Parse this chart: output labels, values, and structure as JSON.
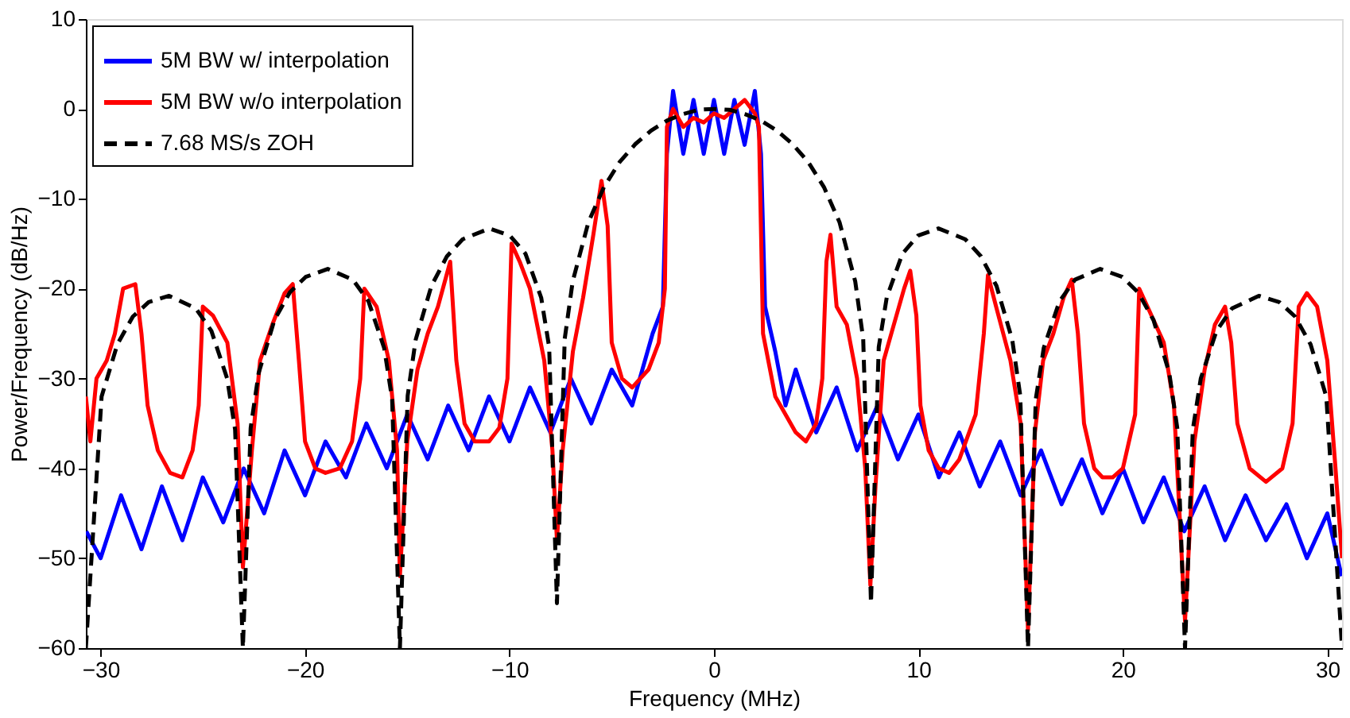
{
  "chart_data": {
    "type": "line",
    "xlabel": "Frequency (MHz)",
    "ylabel": "Power/Frequency (dB/Hz)",
    "xlim": [
      -30.72,
      30.72
    ],
    "ylim": [
      -60,
      10
    ],
    "xticks": [
      -30,
      -20,
      -10,
      0,
      10,
      20,
      30
    ],
    "yticks": [
      -60,
      -50,
      -40,
      -30,
      -20,
      -10,
      0,
      10
    ],
    "grid": false,
    "legend": "top left",
    "marker": "none",
    "series": [
      {
        "name": "5M BW w/ interpolation",
        "color": "#0000ff",
        "line_style": "solid",
        "x": [
          -30.7,
          -30,
          -29,
          -28,
          -27,
          -26,
          -25,
          -24,
          -23,
          -22,
          -21,
          -20,
          -19,
          -18,
          -17,
          -16,
          -15,
          -14,
          -13,
          -12,
          -11,
          -10,
          -9,
          -8,
          -7,
          -6,
          -5,
          -4,
          -3,
          -2.5,
          -2.3,
          -2,
          -1.5,
          -1,
          -0.5,
          0,
          0.5,
          1,
          1.5,
          2,
          2.3,
          2.5,
          3,
          3.5,
          4,
          5,
          6,
          7,
          8,
          9,
          10,
          11,
          12,
          13,
          14,
          15,
          16,
          17,
          18,
          19,
          20,
          21,
          22,
          23,
          24,
          25,
          26,
          27,
          28,
          29,
          30,
          30.7
        ],
        "values": [
          -47,
          -50,
          -43,
          -49,
          -42,
          -48,
          -41,
          -46,
          -40,
          -45,
          -38,
          -43,
          -37,
          -41,
          -35,
          -40,
          -34,
          -39,
          -33,
          -38,
          -32,
          -37,
          -31,
          -36,
          -30,
          -35,
          -29,
          -33,
          -25,
          -22,
          -5,
          2,
          -5,
          1,
          -5,
          1,
          -5,
          1,
          -4,
          2,
          -5,
          -22,
          -27,
          -33,
          -29,
          -36,
          -31,
          -38,
          -33,
          -39,
          -34,
          -41,
          -36,
          -42,
          -37,
          -43,
          -38,
          -44,
          -39,
          -45,
          -40,
          -46,
          -41,
          -47,
          -42,
          -48,
          -43,
          -48,
          -44,
          -50,
          -45,
          -52
        ]
      },
      {
        "name": "5M BW w/o interpolation",
        "color": "#ff0000",
        "line_style": "solid",
        "x": [
          -30.72,
          -30.5,
          -30.2,
          -29.7,
          -29.3,
          -28.9,
          -28.3,
          -28.0,
          -27.7,
          -27.2,
          -26.6,
          -26,
          -25.5,
          -25.2,
          -25.0,
          -24.5,
          -23.8,
          -23.3,
          -23.04,
          -22.6,
          -22.2,
          -21.6,
          -21,
          -20.6,
          -20.3,
          -20.0,
          -19.5,
          -19,
          -18.3,
          -17.7,
          -17.3,
          -17.1,
          -16.5,
          -15.9,
          -15.5,
          -15.36,
          -15.0,
          -14.5,
          -14,
          -13.5,
          -12.9,
          -12.6,
          -12.2,
          -11.7,
          -11,
          -10.5,
          -10.1,
          -9.9,
          -9.5,
          -9.0,
          -8.3,
          -7.9,
          -7.68,
          -7.4,
          -6.9,
          -6.4,
          -5.9,
          -5.5,
          -5.2,
          -5.0,
          -4.5,
          -4,
          -3.2,
          -2.7,
          -2.4,
          -2.3,
          -2,
          -1.5,
          -1,
          -0.5,
          0,
          0.5,
          1,
          1.5,
          2,
          2.2,
          2.4,
          3,
          4,
          4.5,
          5,
          5.3,
          5.5,
          5.7,
          6.0,
          6.5,
          7.0,
          7.4,
          7.65,
          7.9,
          8.3,
          8.8,
          9.3,
          9.6,
          9.9,
          10.1,
          10.5,
          11,
          11.5,
          12,
          12.8,
          13.2,
          13.4,
          13.8,
          14.5,
          15.0,
          15.36,
          15.7,
          16.1,
          16.6,
          17.1,
          17.5,
          17.8,
          18.1,
          18.6,
          19,
          19.5,
          20,
          20.6,
          20.8,
          21.2,
          22,
          22.5,
          23.04,
          23.5,
          24,
          24.5,
          25,
          25.3,
          25.6,
          26.2,
          27,
          27.8,
          28.3,
          28.6,
          29,
          29.5,
          30,
          30.4,
          30.72
        ],
        "values": [
          -32,
          -37,
          -30,
          -28,
          -25,
          -20,
          -19.5,
          -25,
          -33,
          -38,
          -40.5,
          -41,
          -38,
          -33,
          -22,
          -23,
          -26,
          -35,
          -51,
          -38,
          -28,
          -24,
          -20.5,
          -19.5,
          -28,
          -37,
          -40,
          -40.5,
          -40,
          -37,
          -30,
          -20,
          -22,
          -28,
          -38,
          -52,
          -37,
          -29,
          -25,
          -22,
          -17,
          -28,
          -35,
          -37,
          -37,
          -35.5,
          -30,
          -15,
          -17,
          -20,
          -28,
          -38,
          -48,
          -38,
          -27,
          -21,
          -14,
          -8,
          -13,
          -26,
          -30,
          -31,
          -29,
          -26,
          -20,
          -2,
          0,
          -2,
          -1,
          -1.5,
          -0.5,
          -1,
          0,
          1,
          -0.5,
          -2,
          -25,
          -32,
          -36,
          -37,
          -35,
          -30,
          -17,
          -14,
          -22,
          -24,
          -30,
          -40,
          -53,
          -42,
          -28,
          -24,
          -20,
          -18,
          -23,
          -33,
          -38,
          -40,
          -40.5,
          -39,
          -34,
          -25,
          -18.5,
          -22,
          -28,
          -35,
          -58,
          -36,
          -28,
          -25,
          -21,
          -19,
          -25,
          -35,
          -40,
          -41,
          -41,
          -40,
          -34,
          -20,
          -22,
          -26,
          -33,
          -57,
          -37,
          -29,
          -24,
          -22,
          -26,
          -35,
          -40,
          -41.5,
          -40,
          -35,
          -22,
          -20.5,
          -22,
          -28,
          -40,
          -50
        ]
      },
      {
        "name": "7.68 MS/s ZOH",
        "color": "#000000",
        "line_style": "dashed",
        "x": [
          -30.72,
          -29.95,
          -29.18,
          -28.42,
          -27.65,
          -26.65,
          -25.34,
          -24.58,
          -23.81,
          -23.42,
          -23.04,
          -22.66,
          -22.27,
          -21.5,
          -20.74,
          -19.97,
          -18.89,
          -17.66,
          -16.9,
          -16.13,
          -15.74,
          -15.36,
          -14.98,
          -14.59,
          -13.82,
          -13.06,
          -12.29,
          -10.98,
          -9.98,
          -9.22,
          -8.45,
          -8.06,
          -7.68,
          -7.3,
          -6.91,
          -6.14,
          -5.38,
          -4.61,
          -3.84,
          -3.07,
          -2.3,
          -1.54,
          -0.77,
          0,
          0.77,
          1.54,
          2.3,
          3.07,
          3.84,
          4.61,
          5.38,
          6.14,
          6.91,
          7.3,
          7.68,
          8.06,
          8.45,
          9.22,
          9.98,
          10.98,
          12.29,
          13.06,
          13.82,
          14.59,
          14.98,
          15.36,
          15.74,
          16.13,
          16.9,
          17.66,
          18.89,
          19.97,
          20.74,
          21.5,
          22.27,
          22.66,
          23.04,
          23.42,
          23.81,
          24.58,
          25.34,
          26.65,
          27.65,
          28.42,
          29.18,
          29.95,
          30.72
        ],
        "values": [
          -60,
          -32,
          -26.2,
          -23.1,
          -21.5,
          -20.8,
          -22.2,
          -24.7,
          -30,
          -35.7,
          -60,
          -35.5,
          -29.4,
          -23.5,
          -20.4,
          -18.7,
          -17.8,
          -19,
          -21.4,
          -26.6,
          -32.3,
          -60,
          -31.9,
          -25.7,
          -19.7,
          -16.4,
          -14.5,
          -13.3,
          -14.1,
          -16.1,
          -21,
          -26.5,
          -55,
          -25.6,
          -19.2,
          -12.6,
          -8.7,
          -5.9,
          -3.9,
          -2.4,
          -1.3,
          -0.6,
          -0.1,
          0,
          -0.1,
          -0.6,
          -1.3,
          -2.4,
          -3.9,
          -5.9,
          -8.7,
          -12.6,
          -19.2,
          -25.6,
          -55,
          -26.5,
          -21,
          -16.1,
          -14.1,
          -13.3,
          -14.5,
          -16.4,
          -19.7,
          -25.7,
          -31.9,
          -60,
          -32.3,
          -26.6,
          -21.4,
          -19,
          -17.8,
          -18.7,
          -20.4,
          -23.5,
          -29.4,
          -35.5,
          -60,
          -35.7,
          -30,
          -24.7,
          -22.2,
          -20.8,
          -21.5,
          -23.1,
          -26.2,
          -32,
          -60
        ]
      }
    ]
  }
}
